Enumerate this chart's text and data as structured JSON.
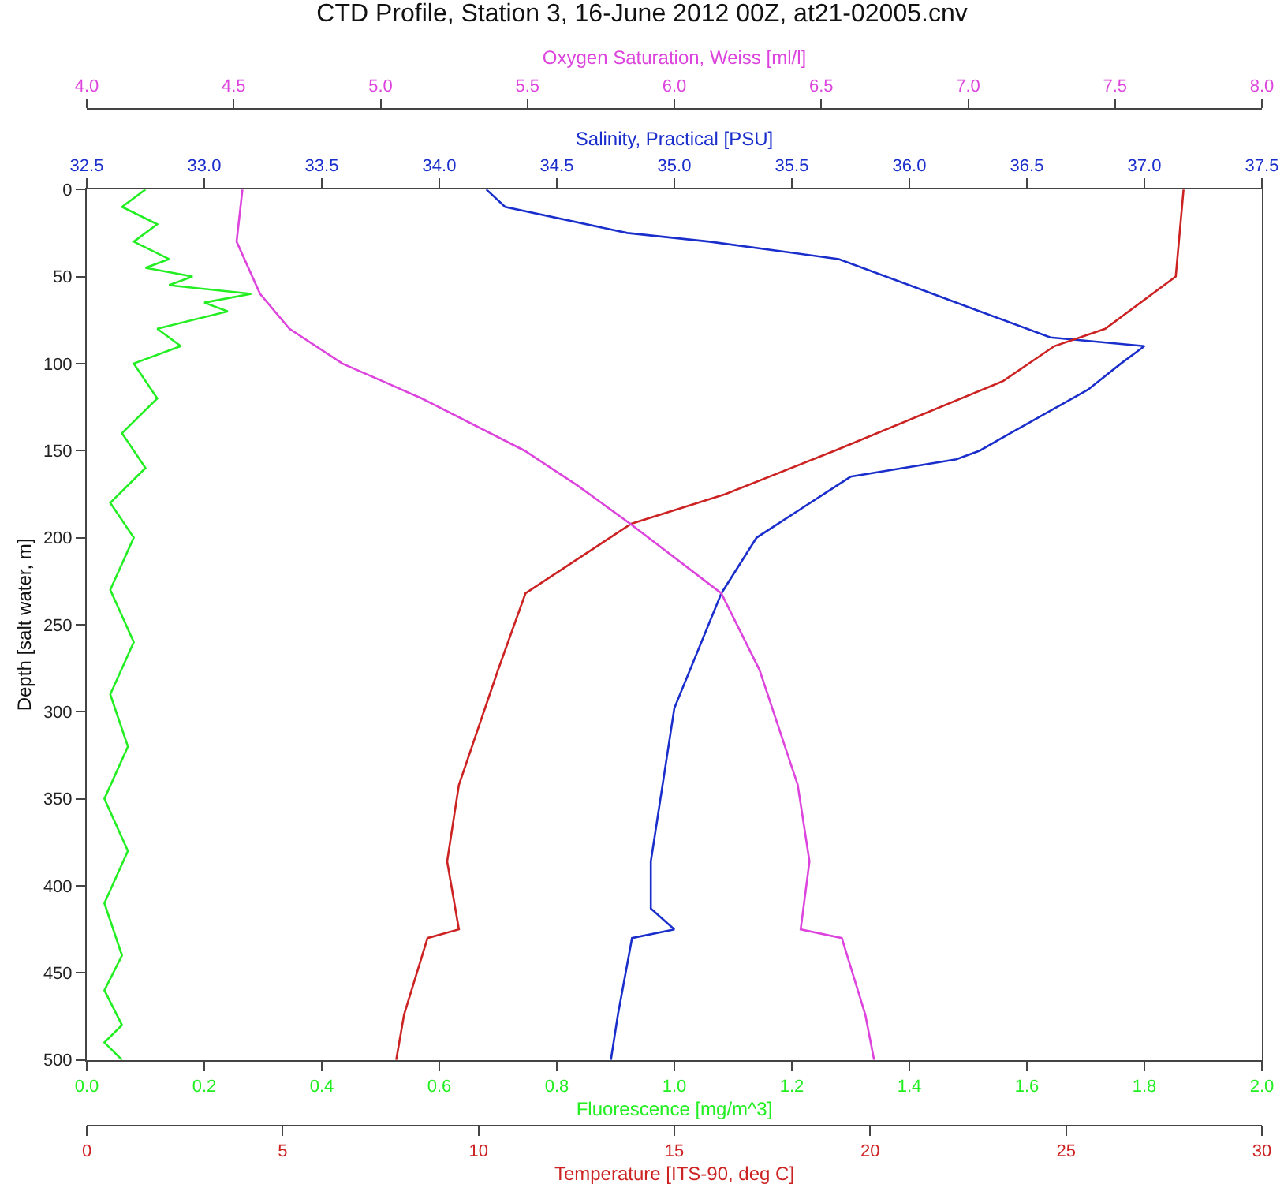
{
  "chart_data": [
    {
      "type": "line",
      "title": "CTD Profile, Station 3, 16-June 2012 00Z, at21-02005.cnv",
      "ylabel": "Depth [salt water, m]",
      "xlabel": "Fluorescence [mg/m^3]",
      "x2label": "Salinity, Practical [PSU]",
      "ylim": [
        500,
        0
      ],
      "yticks": [
        0,
        50,
        100,
        150,
        200,
        250,
        300,
        350,
        400,
        450,
        500
      ],
      "xlim": [
        0,
        2
      ],
      "xticks": [
        {
          "value": 0,
          "label": "0.0"
        },
        0.2,
        0.4,
        0.6,
        0.8,
        {
          "value": 1,
          "label": "1.0"
        },
        1.2,
        1.4,
        1.6,
        1.8,
        {
          "value": 2,
          "label": "2.0"
        }
      ],
      "x2lim": [
        32.5,
        37.5
      ],
      "x2ticks": [
        32.5,
        {
          "value": 33,
          "label": "33.0"
        },
        33.5,
        {
          "value": 34,
          "label": "34.0"
        },
        34.5,
        {
          "value": 35,
          "label": "35.0"
        },
        35.5,
        {
          "value": 36,
          "label": "36.0"
        },
        36.5,
        {
          "value": 37,
          "label": "37.0"
        },
        37.5
      ],
      "grid": false,
      "series": [
        {
          "color": "#22ee22",
          "x": [
            0.1,
            0.06,
            0.12,
            0.08,
            0.14,
            0.1,
            0.18,
            0.14,
            0.28,
            0.2,
            0.24,
            0.12,
            0.16,
            0.08,
            0.12,
            0.06,
            0.1,
            0.04,
            0.08,
            0.04,
            0.08,
            0.04,
            0.07,
            0.03,
            0.07,
            0.03,
            0.06,
            0.03,
            0.06,
            0.03,
            0.06
          ],
          "values": [
            0,
            10,
            20,
            30,
            40,
            45,
            50,
            55,
            60,
            65,
            70,
            80,
            90,
            100,
            120,
            140,
            160,
            180,
            200,
            230,
            260,
            290,
            320,
            350,
            380,
            410,
            440,
            460,
            480,
            490,
            500
          ]
        },
        {
          "color": "#1a2ecc",
          "axis": "x2",
          "x": [
            34.2,
            34.28,
            34.8,
            35.15,
            35.7,
            36.0,
            36.3,
            36.6,
            37.0,
            36.9,
            36.76,
            36.43,
            36.3,
            36.2,
            35.75,
            35.35,
            35.2,
            35.0,
            34.9,
            34.9,
            35.0,
            34.82,
            34.76,
            34.73
          ],
          "values": [
            0,
            10,
            25,
            30,
            40,
            55,
            70,
            85,
            90,
            100,
            115,
            140,
            150,
            155,
            165,
            200,
            232,
            298,
            386,
            413,
            425,
            430,
            474,
            500
          ]
        }
      ]
    },
    {
      "type": "line",
      "xlabel": "Temperature [ITS-90, deg C]",
      "x2label": "Oxygen Saturation, Weiss [ml/l]",
      "ylim": [
        500,
        0
      ],
      "yticks": [
        0,
        50,
        100,
        150,
        200,
        250,
        300,
        350,
        400,
        450,
        500
      ],
      "tick_labels": "x",
      "xlim": [
        0,
        30
      ],
      "xticks": [
        0,
        5,
        10,
        15,
        20,
        25,
        30
      ],
      "x2lim": [
        4,
        8
      ],
      "x2ticks": [
        {
          "value": 4,
          "label": "4.0"
        },
        4.5,
        {
          "value": 5,
          "label": "5.0"
        },
        5.5,
        {
          "value": 6,
          "label": "6.0"
        },
        6.5,
        {
          "value": 7,
          "label": "7.0"
        },
        7.5,
        {
          "value": 8,
          "label": "8.0"
        }
      ],
      "grid": false,
      "series": [
        {
          "color": "#cc2222",
          "x": [
            28.0,
            27.8,
            26.0,
            24.7,
            23.4,
            19.1,
            16.3,
            13.9,
            11.2,
            10.5,
            9.5,
            9.2,
            9.5,
            8.7,
            8.1,
            7.9
          ],
          "values": [
            0,
            50,
            80,
            90,
            110,
            150,
            175,
            192,
            232,
            276,
            342,
            386,
            425,
            430,
            474,
            500
          ]
        },
        {
          "color": "#dd44dd",
          "axis": "x2",
          "x": [
            4.53,
            4.51,
            4.59,
            4.69,
            4.87,
            5.14,
            5.49,
            5.67,
            5.85,
            6.16,
            6.29,
            6.42,
            6.46,
            6.43,
            6.57,
            6.65,
            6.68
          ],
          "values": [
            0,
            30,
            60,
            80,
            100,
            120,
            150,
            170,
            192,
            232,
            276,
            342,
            386,
            425,
            430,
            474,
            500
          ]
        }
      ]
    }
  ]
}
